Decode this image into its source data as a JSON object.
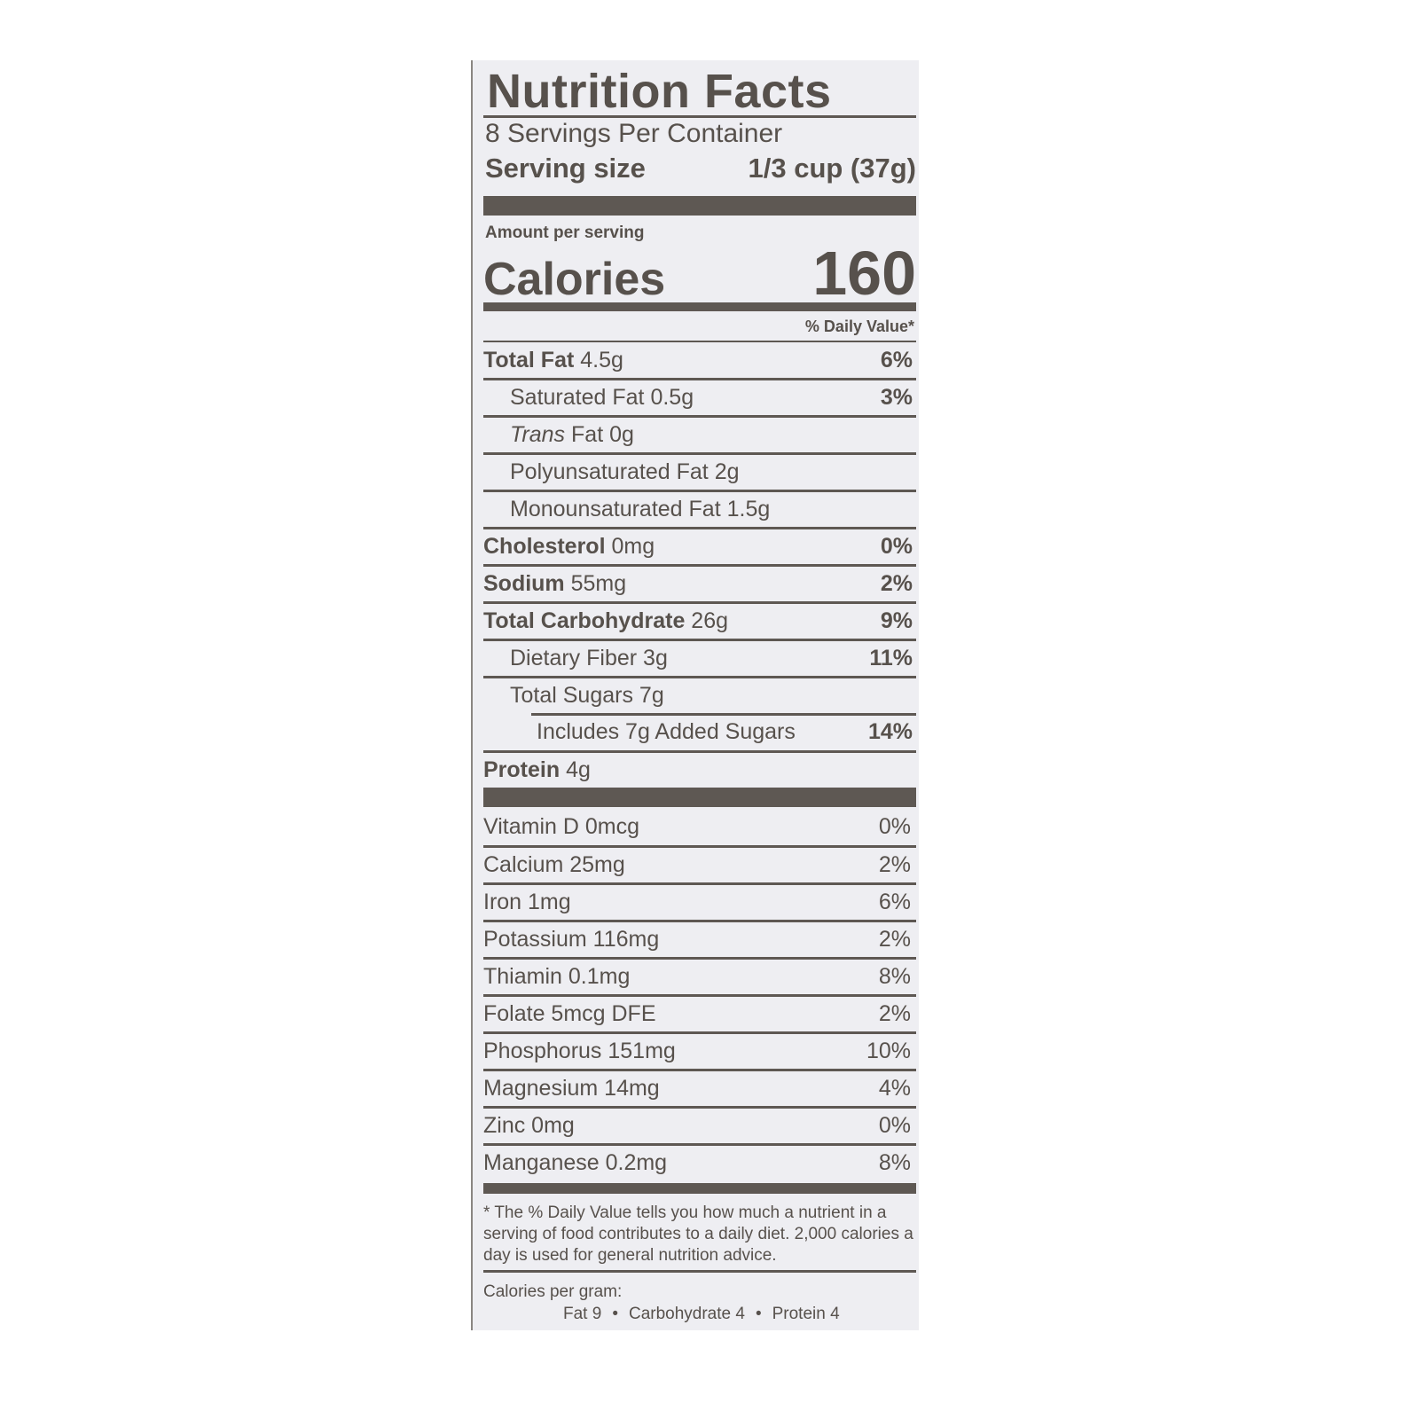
{
  "title": "Nutrition Facts",
  "servings_per_container": "8 Servings Per Container",
  "serving_size_label": "Serving size",
  "serving_size_value": "1/3 cup (37g)",
  "amount_per_serving": "Amount per serving",
  "calories_label": "Calories",
  "calories_value": "160",
  "daily_value_header": "% Daily Value*",
  "nutrients": [
    {
      "label": "Total Fat",
      "amount": "4.5g",
      "dv": "6%"
    },
    {
      "label": "Saturated Fat",
      "amount": "0.5g",
      "dv": "3%"
    },
    {
      "label_italic": "Trans",
      "label": "Fat",
      "amount": "0g",
      "dv": ""
    },
    {
      "label": "Polyunsaturated Fat",
      "amount": "2g",
      "dv": ""
    },
    {
      "label": "Monounsaturated Fat",
      "amount": "1.5g",
      "dv": ""
    },
    {
      "label": "Cholesterol",
      "amount": "0mg",
      "dv": "0%"
    },
    {
      "label": "Sodium",
      "amount": "55mg",
      "dv": "2%"
    },
    {
      "label": "Total Carbohydrate",
      "amount": "26g",
      "dv": "9%"
    },
    {
      "label": "Dietary Fiber",
      "amount": "3g",
      "dv": "11%"
    },
    {
      "label": "Total Sugars",
      "amount": "7g",
      "dv": ""
    },
    {
      "label": "Includes 7g Added Sugars",
      "amount": "",
      "dv": "14%"
    },
    {
      "label": "Protein",
      "amount": "4g",
      "dv": ""
    }
  ],
  "vitamins": [
    {
      "label": "Vitamin D 0mcg",
      "dv": "0%"
    },
    {
      "label": "Calcium 25mg",
      "dv": "2%"
    },
    {
      "label": "Iron 1mg",
      "dv": "6%"
    },
    {
      "label": "Potassium 116mg",
      "dv": "2%"
    },
    {
      "label": "Thiamin 0.1mg",
      "dv": "8%"
    },
    {
      "label": "Folate 5mcg DFE",
      "dv": "2%"
    },
    {
      "label": "Phosphorus 151mg",
      "dv": "10%"
    },
    {
      "label": "Magnesium 14mg",
      "dv": "4%"
    },
    {
      "label": "Zinc 0mg",
      "dv": "0%"
    },
    {
      "label": "Manganese 0.2mg",
      "dv": "8%"
    }
  ],
  "footnote": "* The % Daily Value tells you how much a nutrient in a serving of food contributes to a daily diet. 2,000 calories a day is used for general nutrition advice.",
  "calories_per_gram": {
    "label": "Calories per gram:",
    "fat": "Fat 9",
    "carbohydrate": "Carbohydrate 4",
    "protein": "Protein 4",
    "separator": "•"
  },
  "colors": {
    "ink": "#57514c",
    "background": "#eeeef2"
  }
}
